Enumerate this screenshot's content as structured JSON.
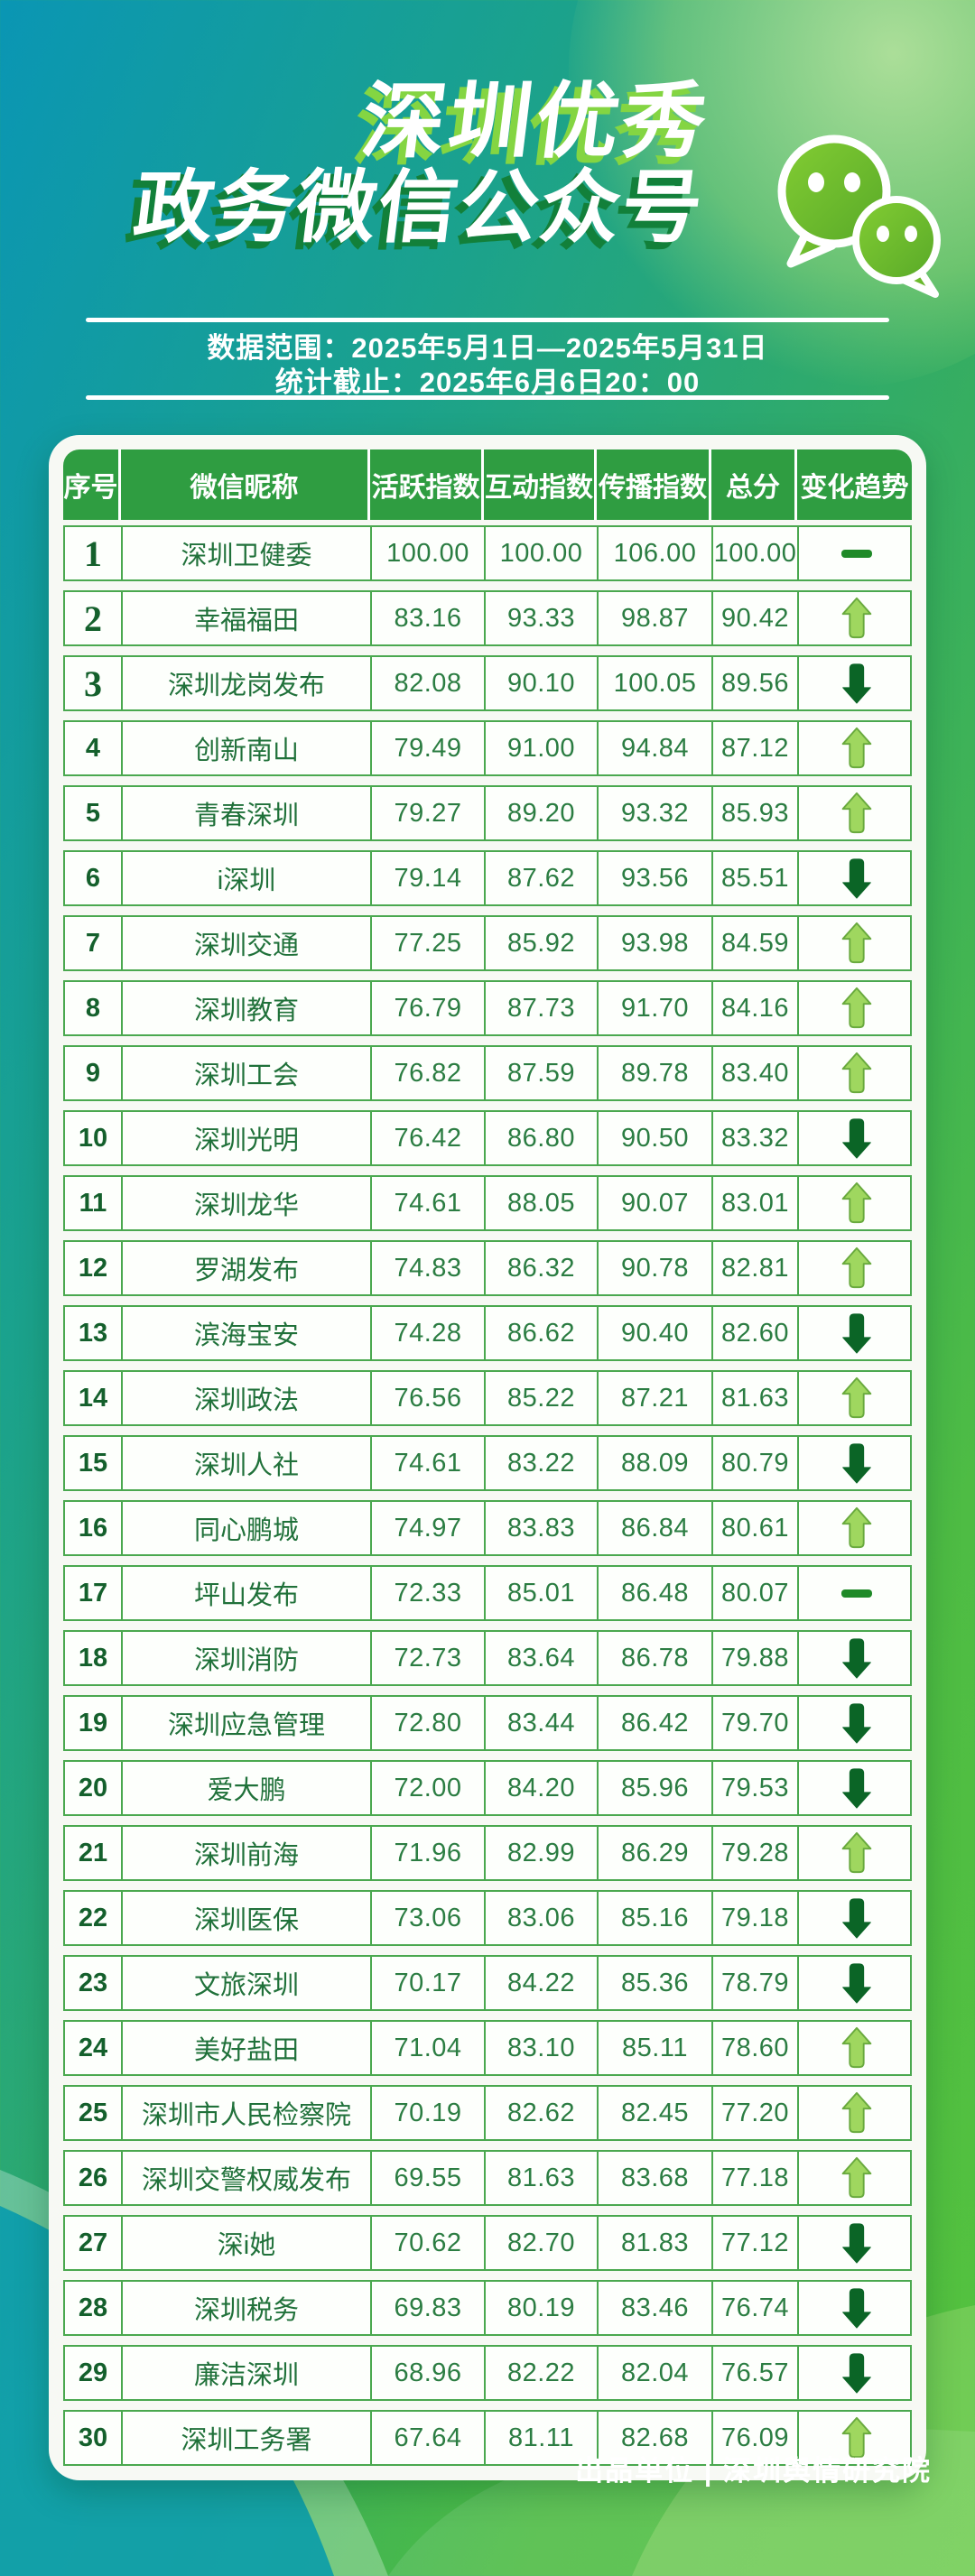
{
  "header": {
    "title_line1": "深圳优秀",
    "title_line2": "政务微信公众号",
    "info_line1": "数据范围：2025年5月1日—2025年5月31日",
    "info_line2": "统计截止：2025年6月6日20：00"
  },
  "footer": {
    "credit": "出品单位 | 深圳舆情研究院"
  },
  "palette": {
    "bg_teal": "#0a96b4",
    "bg_green": "#55c33e",
    "header_green": "#2f9d41",
    "border_green": "#4aa84f",
    "text_green": "#20713a",
    "number_green": "#2b7d42",
    "title_shadow_light": "#84d542",
    "title_shadow_dark": "#12803a",
    "trend_up": "#9fd75f",
    "trend_up_edge": "#69aa3e",
    "trend_down": "#0b6526",
    "trend_flat": "#1f8a28",
    "bubble_green": "#6dbf2e"
  },
  "chart_data": {
    "type": "table",
    "title": "深圳优秀政务微信公众号",
    "columns": [
      "序号",
      "微信昵称",
      "活跃指数",
      "互动指数",
      "传播指数",
      "总分",
      "变化趋势"
    ],
    "rows": [
      {
        "rank": "1",
        "name": "深圳卫健委",
        "active": "100.00",
        "interact": "100.00",
        "spread": "106.00",
        "total": "100.00",
        "trend": "flat"
      },
      {
        "rank": "2",
        "name": "幸福福田",
        "active": "83.16",
        "interact": "93.33",
        "spread": "98.87",
        "total": "90.42",
        "trend": "up"
      },
      {
        "rank": "3",
        "name": "深圳龙岗发布",
        "active": "82.08",
        "interact": "90.10",
        "spread": "100.05",
        "total": "89.56",
        "trend": "down"
      },
      {
        "rank": "4",
        "name": "创新南山",
        "active": "79.49",
        "interact": "91.00",
        "spread": "94.84",
        "total": "87.12",
        "trend": "up"
      },
      {
        "rank": "5",
        "name": "青春深圳",
        "active": "79.27",
        "interact": "89.20",
        "spread": "93.32",
        "total": "85.93",
        "trend": "up"
      },
      {
        "rank": "6",
        "name": "i深圳",
        "active": "79.14",
        "interact": "87.62",
        "spread": "93.56",
        "total": "85.51",
        "trend": "down"
      },
      {
        "rank": "7",
        "name": "深圳交通",
        "active": "77.25",
        "interact": "85.92",
        "spread": "93.98",
        "total": "84.59",
        "trend": "up"
      },
      {
        "rank": "8",
        "name": "深圳教育",
        "active": "76.79",
        "interact": "87.73",
        "spread": "91.70",
        "total": "84.16",
        "trend": "up"
      },
      {
        "rank": "9",
        "name": "深圳工会",
        "active": "76.82",
        "interact": "87.59",
        "spread": "89.78",
        "total": "83.40",
        "trend": "up"
      },
      {
        "rank": "10",
        "name": "深圳光明",
        "active": "76.42",
        "interact": "86.80",
        "spread": "90.50",
        "total": "83.32",
        "trend": "down"
      },
      {
        "rank": "11",
        "name": "深圳龙华",
        "active": "74.61",
        "interact": "88.05",
        "spread": "90.07",
        "total": "83.01",
        "trend": "up"
      },
      {
        "rank": "12",
        "name": "罗湖发布",
        "active": "74.83",
        "interact": "86.32",
        "spread": "90.78",
        "total": "82.81",
        "trend": "up"
      },
      {
        "rank": "13",
        "name": "滨海宝安",
        "active": "74.28",
        "interact": "86.62",
        "spread": "90.40",
        "total": "82.60",
        "trend": "down"
      },
      {
        "rank": "14",
        "name": "深圳政法",
        "active": "76.56",
        "interact": "85.22",
        "spread": "87.21",
        "total": "81.63",
        "trend": "up"
      },
      {
        "rank": "15",
        "name": "深圳人社",
        "active": "74.61",
        "interact": "83.22",
        "spread": "88.09",
        "total": "80.79",
        "trend": "down"
      },
      {
        "rank": "16",
        "name": "同心鹏城",
        "active": "74.97",
        "interact": "83.83",
        "spread": "86.84",
        "total": "80.61",
        "trend": "up"
      },
      {
        "rank": "17",
        "name": "坪山发布",
        "active": "72.33",
        "interact": "85.01",
        "spread": "86.48",
        "total": "80.07",
        "trend": "flat"
      },
      {
        "rank": "18",
        "name": "深圳消防",
        "active": "72.73",
        "interact": "83.64",
        "spread": "86.78",
        "total": "79.88",
        "trend": "down"
      },
      {
        "rank": "19",
        "name": "深圳应急管理",
        "active": "72.80",
        "interact": "83.44",
        "spread": "86.42",
        "total": "79.70",
        "trend": "down"
      },
      {
        "rank": "20",
        "name": "爱大鹏",
        "active": "72.00",
        "interact": "84.20",
        "spread": "85.96",
        "total": "79.53",
        "trend": "down"
      },
      {
        "rank": "21",
        "name": "深圳前海",
        "active": "71.96",
        "interact": "82.99",
        "spread": "86.29",
        "total": "79.28",
        "trend": "up"
      },
      {
        "rank": "22",
        "name": "深圳医保",
        "active": "73.06",
        "interact": "83.06",
        "spread": "85.16",
        "total": "79.18",
        "trend": "down"
      },
      {
        "rank": "23",
        "name": "文旅深圳",
        "active": "70.17",
        "interact": "84.22",
        "spread": "85.36",
        "total": "78.79",
        "trend": "down"
      },
      {
        "rank": "24",
        "name": "美好盐田",
        "active": "71.04",
        "interact": "83.10",
        "spread": "85.11",
        "total": "78.60",
        "trend": "up"
      },
      {
        "rank": "25",
        "name": "深圳市人民检察院",
        "active": "70.19",
        "interact": "82.62",
        "spread": "82.45",
        "total": "77.20",
        "trend": "up"
      },
      {
        "rank": "26",
        "name": "深圳交警权威发布",
        "active": "69.55",
        "interact": "81.63",
        "spread": "83.68",
        "total": "77.18",
        "trend": "up"
      },
      {
        "rank": "27",
        "name": "深i她",
        "active": "70.62",
        "interact": "82.70",
        "spread": "81.83",
        "total": "77.12",
        "trend": "down"
      },
      {
        "rank": "28",
        "name": "深圳税务",
        "active": "69.83",
        "interact": "80.19",
        "spread": "83.46",
        "total": "76.74",
        "trend": "down"
      },
      {
        "rank": "29",
        "name": "廉洁深圳",
        "active": "68.96",
        "interact": "82.22",
        "spread": "82.04",
        "total": "76.57",
        "trend": "down"
      },
      {
        "rank": "30",
        "name": "深圳工务署",
        "active": "67.64",
        "interact": "81.11",
        "spread": "82.68",
        "total": "76.09",
        "trend": "up"
      }
    ]
  }
}
